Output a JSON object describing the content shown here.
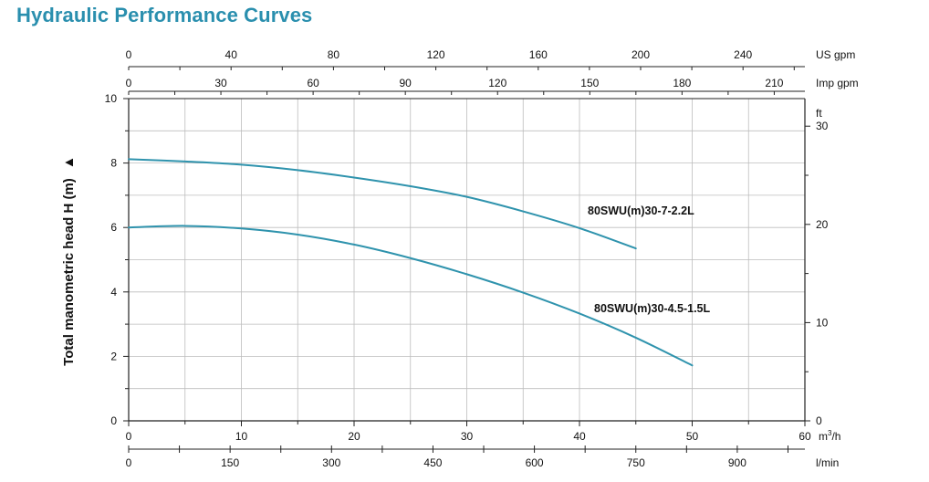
{
  "title": "Hydraulic Performance Curves",
  "chart_data": {
    "type": "line",
    "title": "Hydraulic Performance Curves",
    "xlabel": "m³/h",
    "ylabel": "Total manometric head H (m)",
    "ylabel_arrow": "▲",
    "xlim": [
      0,
      60
    ],
    "ylim": [
      0,
      10
    ],
    "grid": true,
    "x_ticks": [
      0,
      10,
      20,
      30,
      40,
      50,
      60
    ],
    "y_ticks": [
      0,
      2,
      4,
      6,
      8,
      10
    ],
    "x_unit": "m",
    "x_unit_sup": "3",
    "x_unit_tail": "/h",
    "secondary_axes": {
      "us_gpm": {
        "unit": "US gpm",
        "ticks": [
          0,
          40,
          80,
          120,
          160,
          200,
          240
        ]
      },
      "imp_gpm": {
        "unit": "Imp gpm",
        "ticks": [
          0,
          30,
          60,
          90,
          120,
          150,
          180,
          210
        ]
      },
      "l_min": {
        "unit": "l/min",
        "ticks": [
          0,
          150,
          300,
          450,
          600,
          750,
          900
        ]
      },
      "ft": {
        "unit": "ft",
        "ticks": [
          0,
          10,
          20,
          30
        ]
      }
    },
    "series": [
      {
        "name": "80SWU(m)30-7-2.2L",
        "x": [
          0,
          5,
          10,
          15,
          20,
          25,
          30,
          35,
          40,
          45
        ],
        "y": [
          8.12,
          8.05,
          7.95,
          7.78,
          7.55,
          7.28,
          6.95,
          6.5,
          5.98,
          5.35
        ]
      },
      {
        "name": "80SWU(m)30-4.5-1.5L",
        "x": [
          0,
          5,
          10,
          15,
          20,
          25,
          30,
          35,
          40,
          45,
          50
        ],
        "y": [
          6.0,
          6.05,
          5.97,
          5.78,
          5.47,
          5.05,
          4.55,
          3.98,
          3.33,
          2.58,
          1.72
        ]
      }
    ]
  },
  "colors": {
    "curve": "#2f93ad",
    "title": "#2a8fae",
    "grid": "#bdbdbd",
    "axis": "#222222"
  }
}
